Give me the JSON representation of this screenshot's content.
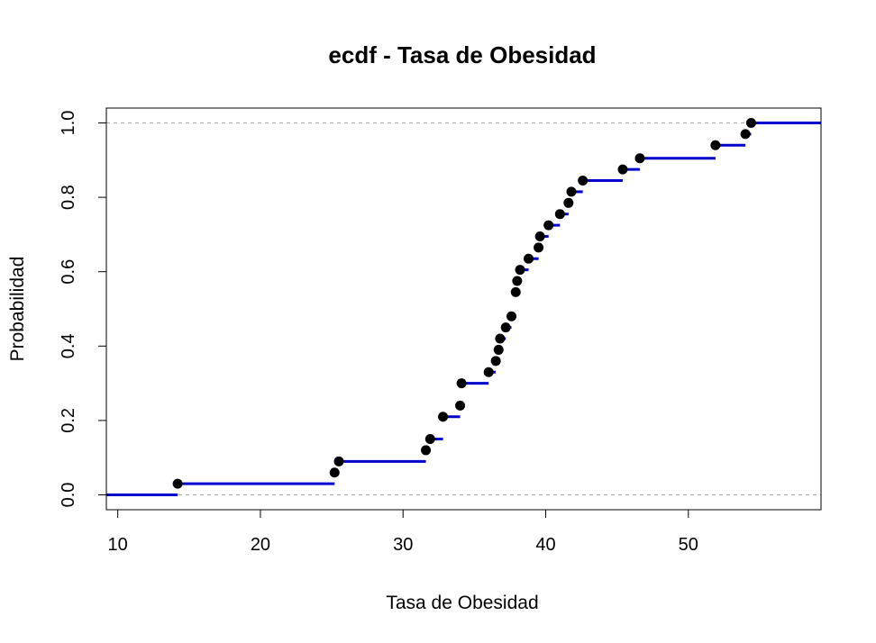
{
  "chart_data": {
    "type": "ecdf",
    "title": "ecdf - Tasa de Obesidad",
    "xlabel": "Tasa de Obesidad",
    "ylabel": "Probabilidad",
    "xlim": [
      9.2,
      59.3
    ],
    "ylim": [
      -0.04,
      1.04
    ],
    "xticks": [
      10,
      20,
      30,
      40,
      50
    ],
    "yticks": [
      0.0,
      0.2,
      0.4,
      0.6,
      0.8,
      1.0
    ],
    "ytick_labels": [
      "0.0",
      "0.2",
      "0.4",
      "0.6",
      "0.8",
      "1.0"
    ],
    "guide_lines_y": [
      0,
      1
    ],
    "step_color": "#0000cd",
    "point_color": "#000000",
    "points": [
      {
        "x": 14.2,
        "y": 0.03
      },
      {
        "x": 25.2,
        "y": 0.06
      },
      {
        "x": 25.5,
        "y": 0.09
      },
      {
        "x": 31.6,
        "y": 0.12
      },
      {
        "x": 31.9,
        "y": 0.15
      },
      {
        "x": 32.8,
        "y": 0.21
      },
      {
        "x": 34.0,
        "y": 0.24
      },
      {
        "x": 34.1,
        "y": 0.3
      },
      {
        "x": 36.0,
        "y": 0.33
      },
      {
        "x": 36.5,
        "y": 0.36
      },
      {
        "x": 36.7,
        "y": 0.39
      },
      {
        "x": 36.8,
        "y": 0.42
      },
      {
        "x": 37.2,
        "y": 0.45
      },
      {
        "x": 37.6,
        "y": 0.48
      },
      {
        "x": 37.9,
        "y": 0.545
      },
      {
        "x": 38.0,
        "y": 0.575
      },
      {
        "x": 38.2,
        "y": 0.605
      },
      {
        "x": 38.8,
        "y": 0.635
      },
      {
        "x": 39.5,
        "y": 0.665
      },
      {
        "x": 39.6,
        "y": 0.695
      },
      {
        "x": 40.2,
        "y": 0.725
      },
      {
        "x": 41.0,
        "y": 0.755
      },
      {
        "x": 41.6,
        "y": 0.785
      },
      {
        "x": 41.8,
        "y": 0.815
      },
      {
        "x": 42.6,
        "y": 0.845
      },
      {
        "x": 45.4,
        "y": 0.875
      },
      {
        "x": 46.6,
        "y": 0.905
      },
      {
        "x": 51.9,
        "y": 0.94
      },
      {
        "x": 54.0,
        "y": 0.97
      },
      {
        "x": 54.4,
        "y": 1.0
      }
    ]
  }
}
